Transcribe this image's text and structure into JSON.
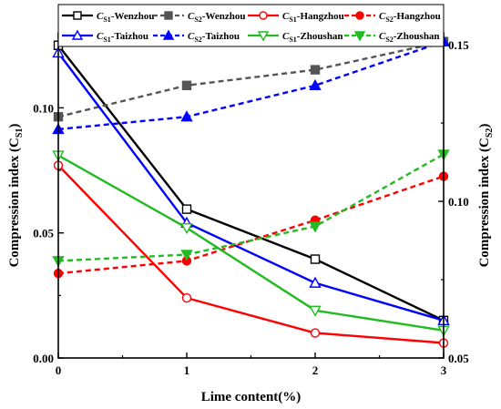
{
  "chart_data": {
    "type": "line",
    "x": [
      0,
      1,
      2,
      3
    ],
    "xlabel": "Lime content(%)",
    "xlim": [
      0,
      3
    ],
    "y_left": {
      "label": "Compression index (C",
      "label_sub": "S1",
      "label_end": ")",
      "range": [
        0.0,
        0.13
      ],
      "ticks": [
        0.0,
        0.05,
        0.1
      ],
      "tick_labels": [
        "0.00",
        "0.05",
        "0.10"
      ]
    },
    "y_right": {
      "label": "Compression index (C",
      "label_sub": "S2",
      "label_end": ")",
      "range": [
        0.05,
        0.1538
      ],
      "ticks": [
        0.05,
        0.1,
        0.15
      ],
      "tick_labels": [
        "0.05",
        "0.10",
        "0.15"
      ]
    },
    "x_tick_labels": [
      "0",
      "1",
      "2",
      "3"
    ],
    "legend_position": "top",
    "series": [
      {
        "name_main": "C",
        "name_sub": "S1",
        "name_rest": "-Wenzhou",
        "axis": "left",
        "color": "#000000",
        "dash": "solid",
        "marker": "square",
        "filled": false,
        "values": [
          0.125,
          0.0595,
          0.0395,
          0.015
        ]
      },
      {
        "name_main": "C",
        "name_sub": "S2",
        "name_rest": "-Wenzhou",
        "axis": "right",
        "color": "#555555",
        "dash": "dashed",
        "marker": "square",
        "filled": true,
        "values": [
          0.127,
          0.137,
          0.142,
          0.151
        ]
      },
      {
        "name_main": "C",
        "name_sub": "S1",
        "name_rest": "-Hangzhou",
        "axis": "left",
        "color": "#ff0000",
        "dash": "solid",
        "marker": "circle",
        "filled": false,
        "values": [
          0.077,
          0.024,
          0.01,
          0.006
        ]
      },
      {
        "name_main": "C",
        "name_sub": "S2",
        "name_rest": "-Hangzhou",
        "axis": "right",
        "color": "#ff0000",
        "dash": "dashed",
        "marker": "circle",
        "filled": true,
        "values": [
          0.077,
          0.081,
          0.094,
          0.108
        ]
      },
      {
        "name_main": "C",
        "name_sub": "S1",
        "name_rest": "-Taizhou",
        "axis": "left",
        "color": "#0000ff",
        "dash": "solid",
        "marker": "triangle-up",
        "filled": false,
        "values": [
          0.122,
          0.054,
          0.03,
          0.015
        ]
      },
      {
        "name_main": "C",
        "name_sub": "S2",
        "name_rest": "-Taizhou",
        "axis": "right",
        "color": "#0000ff",
        "dash": "dashed",
        "marker": "triangle-up",
        "filled": true,
        "values": [
          0.123,
          0.127,
          0.137,
          0.151
        ]
      },
      {
        "name_main": "C",
        "name_sub": "S1",
        "name_rest": "-Zhoushan",
        "axis": "left",
        "color": "#22bb22",
        "dash": "solid",
        "marker": "triangle-down",
        "filled": false,
        "values": [
          0.081,
          0.052,
          0.019,
          0.011
        ]
      },
      {
        "name_main": "C",
        "name_sub": "S2",
        "name_rest": "-Zhoushan",
        "axis": "right",
        "color": "#22bb22",
        "dash": "dashed",
        "marker": "triangle-down",
        "filled": true,
        "values": [
          0.081,
          0.083,
          0.092,
          0.115
        ]
      }
    ]
  }
}
